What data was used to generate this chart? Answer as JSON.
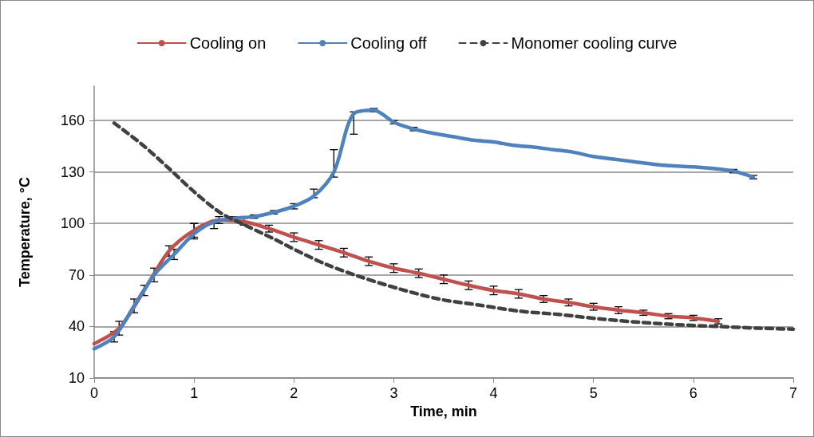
{
  "chart_data": {
    "type": "line",
    "xlabel": "Time, min",
    "ylabel": "Temperature, °C",
    "xlim": [
      0,
      7
    ],
    "xticks": [
      0,
      1,
      2,
      3,
      4,
      5,
      6,
      7
    ],
    "ylim": [
      10,
      180
    ],
    "yticks": [
      10,
      40,
      70,
      100,
      130,
      160
    ],
    "grid": "y",
    "legend": "top",
    "marker": "none",
    "series": [
      {
        "name": "Cooling on",
        "color": "#c0504d",
        "line_style": "solid",
        "x": [
          0,
          0.25,
          0.5,
          0.75,
          1,
          1.25,
          1.5,
          1.75,
          2,
          2.25,
          2.5,
          2.75,
          3,
          3.25,
          3.5,
          3.75,
          4,
          4.25,
          4.5,
          4.75,
          5,
          5.25,
          5.5,
          5.75,
          6,
          6.25
        ],
        "values": [
          30,
          39,
          61,
          84,
          96,
          102,
          101,
          97,
          92,
          87.5,
          83,
          78,
          74,
          71,
          67.5,
          64,
          61,
          59,
          56,
          54,
          51.5,
          49.5,
          48,
          46,
          45,
          43
        ],
        "errors": [
          null,
          4,
          3,
          3,
          4,
          2,
          2,
          2,
          2.5,
          2.5,
          2.5,
          2.5,
          2.5,
          2.5,
          2.5,
          2.5,
          2.5,
          2.5,
          2,
          2,
          2,
          2,
          1.5,
          1.5,
          1.5,
          1.5
        ]
      },
      {
        "name": "Cooling off",
        "color": "#4f81bd",
        "line_style": "solid",
        "x": [
          0,
          0.2,
          0.4,
          0.6,
          0.8,
          1,
          1.2,
          1.4,
          1.6,
          1.8,
          2,
          2.2,
          2.4,
          2.6,
          2.8,
          3,
          3.2,
          3.4,
          3.6,
          3.8,
          4,
          4.2,
          4.4,
          4.6,
          4.8,
          5,
          5.2,
          5.4,
          5.6,
          5.8,
          6,
          6.2,
          6.4,
          6.6
        ],
        "values": [
          27,
          34,
          52,
          70,
          82,
          94,
          101,
          103,
          104,
          106.5,
          110,
          116,
          130,
          164,
          166,
          159,
          155,
          152.5,
          150.5,
          148.5,
          147.5,
          145.5,
          144.5,
          143,
          141.5,
          139,
          137.5,
          136,
          134.5,
          133.5,
          133,
          132,
          130.5,
          127
        ],
        "errors": [
          null,
          3,
          4,
          4,
          3,
          [
            91,
            100
          ],
          [
            97,
            101
          ],
          1,
          1,
          1,
          1.5,
          [
            115,
            120
          ],
          [
            127,
            143
          ],
          [
            152,
            165
          ],
          1,
          1,
          1,
          null,
          null,
          null,
          null,
          null,
          null,
          null,
          null,
          null,
          null,
          null,
          null,
          null,
          null,
          null,
          1,
          1
        ]
      },
      {
        "name": "Monomer cooling curve",
        "color": "#404040",
        "line_style": "dashed",
        "x": [
          0.2,
          0.48,
          0.74,
          1,
          1.27,
          1.53,
          1.8,
          2.07,
          2.33,
          2.66,
          3.05,
          3.45,
          3.85,
          4.25,
          4.65,
          5.05,
          5.45,
          5.85,
          6.25,
          6.65,
          7
        ],
        "values": [
          158.5,
          146,
          132.5,
          118.5,
          106,
          98.5,
          91,
          83,
          76,
          69,
          62,
          56,
          52.5,
          49,
          47,
          44.5,
          42.5,
          41,
          40,
          39,
          38.5
        ]
      }
    ]
  }
}
